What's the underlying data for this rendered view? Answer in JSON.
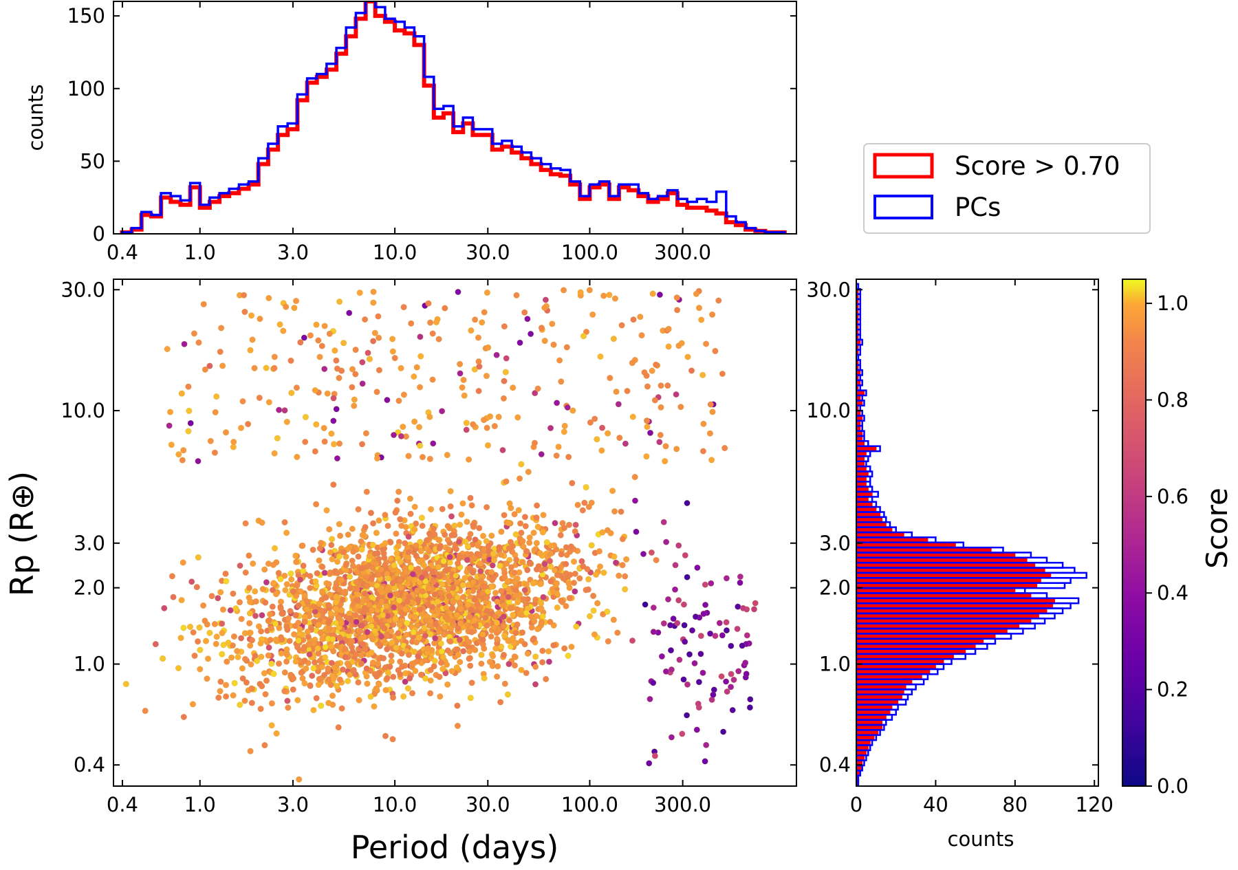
{
  "chart_data": [
    {
      "type": "histogram",
      "panel": "top",
      "title": "",
      "xlabel": "",
      "ylabel": "counts",
      "xscale": "log",
      "xlim": [
        0.36,
        1150
      ],
      "ylim": [
        0,
        160
      ],
      "xticks": [
        0.4,
        1.0,
        3.0,
        10.0,
        30.0,
        100.0,
        300.0
      ],
      "xtick_labels": [
        "0.4",
        "1.0",
        "3.0",
        "10.0",
        "30.0",
        "100.0",
        "300.0"
      ],
      "yticks": [
        0,
        50,
        100,
        150
      ],
      "ytick_labels": [
        "0",
        "50",
        "100",
        "150"
      ],
      "bin_edges_log10": [
        -0.4,
        -0.35,
        -0.3,
        -0.25,
        -0.2,
        -0.15,
        -0.1,
        -0.05,
        0.0,
        0.05,
        0.1,
        0.15,
        0.2,
        0.25,
        0.3,
        0.35,
        0.4,
        0.45,
        0.5,
        0.55,
        0.6,
        0.65,
        0.7,
        0.75,
        0.8,
        0.85,
        0.9,
        0.95,
        1.0,
        1.05,
        1.1,
        1.15,
        1.2,
        1.25,
        1.3,
        1.35,
        1.4,
        1.45,
        1.5,
        1.55,
        1.6,
        1.65,
        1.7,
        1.75,
        1.8,
        1.85,
        1.9,
        1.95,
        2.0,
        2.05,
        2.1,
        2.15,
        2.2,
        2.25,
        2.3,
        2.35,
        2.4,
        2.45,
        2.5,
        2.55,
        2.6,
        2.65,
        2.7,
        2.75,
        2.8,
        2.85,
        2.9,
        2.95,
        3.0
      ],
      "series": [
        {
          "name": "Score > 0.70",
          "color": "#ff0000",
          "values": [
            1,
            3,
            13,
            12,
            25,
            22,
            20,
            32,
            18,
            22,
            26,
            28,
            31,
            34,
            48,
            58,
            68,
            72,
            92,
            104,
            108,
            113,
            124,
            136,
            148,
            160,
            150,
            146,
            140,
            138,
            130,
            102,
            80,
            83,
            70,
            76,
            68,
            68,
            58,
            60,
            56,
            52,
            48,
            44,
            41,
            40,
            34,
            24,
            32,
            34,
            24,
            32,
            30,
            26,
            22,
            24,
            28,
            20,
            18,
            18,
            16,
            14,
            8,
            6,
            3,
            2,
            1,
            1
          ]
        },
        {
          "name": "PCs",
          "color": "#0000ff",
          "values": [
            1,
            4,
            15,
            13,
            28,
            26,
            23,
            35,
            20,
            25,
            28,
            31,
            34,
            36,
            52,
            62,
            74,
            76,
            96,
            107,
            110,
            117,
            128,
            142,
            152,
            164,
            156,
            148,
            146,
            142,
            136,
            108,
            86,
            88,
            74,
            80,
            72,
            72,
            62,
            64,
            60,
            56,
            52,
            48,
            45,
            44,
            36,
            26,
            34,
            36,
            26,
            34,
            34,
            28,
            24,
            26,
            30,
            24,
            22,
            24,
            22,
            29,
            12,
            8,
            4,
            2,
            1,
            1
          ]
        }
      ]
    },
    {
      "type": "scatter",
      "panel": "main",
      "title": "",
      "xlabel": "Period (days)",
      "ylabel": "Rp (R⊕)",
      "xscale": "log",
      "yscale": "log",
      "xlim": [
        0.36,
        1150
      ],
      "ylim": [
        0.33,
        33
      ],
      "xticks": [
        0.4,
        1.0,
        3.0,
        10.0,
        30.0,
        100.0,
        300.0
      ],
      "xtick_labels": [
        "0.4",
        "1.0",
        "3.0",
        "10.0",
        "30.0",
        "100.0",
        "300.0"
      ],
      "yticks": [
        0.4,
        1.0,
        2.0,
        3.0,
        10.0,
        30.0
      ],
      "ytick_labels": [
        "0.4",
        "1.0",
        "2.0",
        "3.0",
        "10.0",
        "30.0"
      ],
      "color_by": "Score",
      "colormap": "plasma",
      "n_points_approx": 3000,
      "distribution": "log-normal cloud centred near period 12 days, Rp 2.0; sparse giant-planet population between Rp 10 and 30; low-score points concentrated at long periods (>200 days)"
    },
    {
      "type": "histogram",
      "panel": "right",
      "orientation": "horizontal",
      "xlabel": "counts",
      "ylabel": "",
      "yscale": "log",
      "ylim": [
        0.33,
        33
      ],
      "xlim": [
        0,
        122
      ],
      "xticks": [
        0,
        40,
        80,
        120
      ],
      "xtick_labels": [
        "0",
        "40",
        "80",
        "120"
      ],
      "yticks": [
        0.4,
        1.0,
        2.0,
        3.0,
        10.0,
        30.0
      ],
      "ytick_labels": [
        "0.4",
        "1.0",
        "2.0",
        "3.0",
        "10.0",
        "30.0"
      ],
      "bin_edges_log10": [
        -0.5,
        -0.48,
        -0.46,
        -0.44,
        -0.42,
        -0.4,
        -0.38,
        -0.36,
        -0.34,
        -0.32,
        -0.3,
        -0.28,
        -0.26,
        -0.24,
        -0.22,
        -0.2,
        -0.18,
        -0.16,
        -0.14,
        -0.12,
        -0.1,
        -0.08,
        -0.06,
        -0.04,
        -0.02,
        0.0,
        0.02,
        0.04,
        0.06,
        0.08,
        0.1,
        0.12,
        0.14,
        0.16,
        0.18,
        0.2,
        0.22,
        0.24,
        0.26,
        0.28,
        0.3,
        0.32,
        0.34,
        0.36,
        0.38,
        0.4,
        0.42,
        0.44,
        0.46,
        0.48,
        0.5,
        0.52,
        0.54,
        0.56,
        0.58,
        0.6,
        0.62,
        0.64,
        0.66,
        0.68,
        0.7,
        0.72,
        0.74,
        0.76,
        0.78,
        0.8,
        0.82,
        0.84,
        0.86,
        0.88,
        0.9,
        0.92,
        0.94,
        0.96,
        0.98,
        1.0,
        1.02,
        1.04,
        1.06,
        1.08,
        1.1,
        1.12,
        1.14,
        1.16,
        1.18,
        1.2,
        1.22,
        1.24,
        1.26,
        1.28,
        1.3,
        1.32,
        1.34,
        1.36,
        1.38,
        1.4,
        1.42,
        1.44,
        1.46,
        1.48,
        1.5
      ],
      "series": [
        {
          "name": "Score > 0.70",
          "color": "#ff0000",
          "values": [
            0,
            1,
            1,
            2,
            3,
            3,
            4,
            5,
            6,
            7,
            9,
            11,
            13,
            13,
            15,
            17,
            18,
            21,
            23,
            24,
            25,
            28,
            33,
            37,
            40,
            44,
            49,
            55,
            60,
            64,
            70,
            76,
            82,
            88,
            92,
            96,
            99,
            100,
            88,
            80,
            91,
            93,
            98,
            95,
            90,
            86,
            80,
            68,
            50,
            36,
            24,
            18,
            15,
            13,
            12,
            10,
            8,
            6,
            8,
            6,
            5,
            5,
            6,
            5,
            4,
            4,
            5,
            10,
            4,
            3,
            3,
            2,
            2,
            3,
            2,
            1,
            3,
            2,
            4,
            1,
            2,
            1,
            2,
            1,
            1,
            0,
            1,
            1,
            2,
            1,
            1,
            1,
            1,
            1,
            1,
            1,
            1,
            1,
            1,
            0
          ]
        },
        {
          "name": "PCs",
          "color": "#0000ff",
          "values": [
            0,
            1,
            1,
            2,
            3,
            4,
            5,
            6,
            7,
            8,
            10,
            12,
            14,
            15,
            18,
            20,
            21,
            25,
            26,
            28,
            30,
            34,
            36,
            41,
            44,
            48,
            55,
            60,
            66,
            70,
            78,
            84,
            90,
            95,
            100,
            104,
            108,
            112,
            96,
            85,
            105,
            108,
            116,
            110,
            104,
            96,
            88,
            74,
            54,
            40,
            28,
            20,
            17,
            15,
            14,
            12,
            10,
            8,
            11,
            8,
            7,
            7,
            8,
            7,
            5,
            6,
            7,
            12,
            6,
            4,
            4,
            3,
            3,
            4,
            3,
            2,
            4,
            3,
            5,
            2,
            3,
            2,
            3,
            2,
            2,
            1,
            2,
            2,
            3,
            2,
            2,
            2,
            2,
            2,
            2,
            2,
            2,
            2,
            2,
            1
          ]
        }
      ]
    }
  ],
  "legend": {
    "placement": "between top histogram and right histogram",
    "items": [
      {
        "label": "Score > 0.70",
        "color": "#ff0000"
      },
      {
        "label": "PCs",
        "color": "#0000ff"
      }
    ]
  },
  "colorbar": {
    "label": "Score",
    "min": 0.0,
    "max": 1.05,
    "ticks": [
      0.0,
      0.2,
      0.4,
      0.6,
      0.8,
      1.0
    ],
    "tick_labels": [
      "0.0",
      "0.2",
      "0.4",
      "0.6",
      "0.8",
      "1.0"
    ],
    "colormap": "plasma"
  }
}
